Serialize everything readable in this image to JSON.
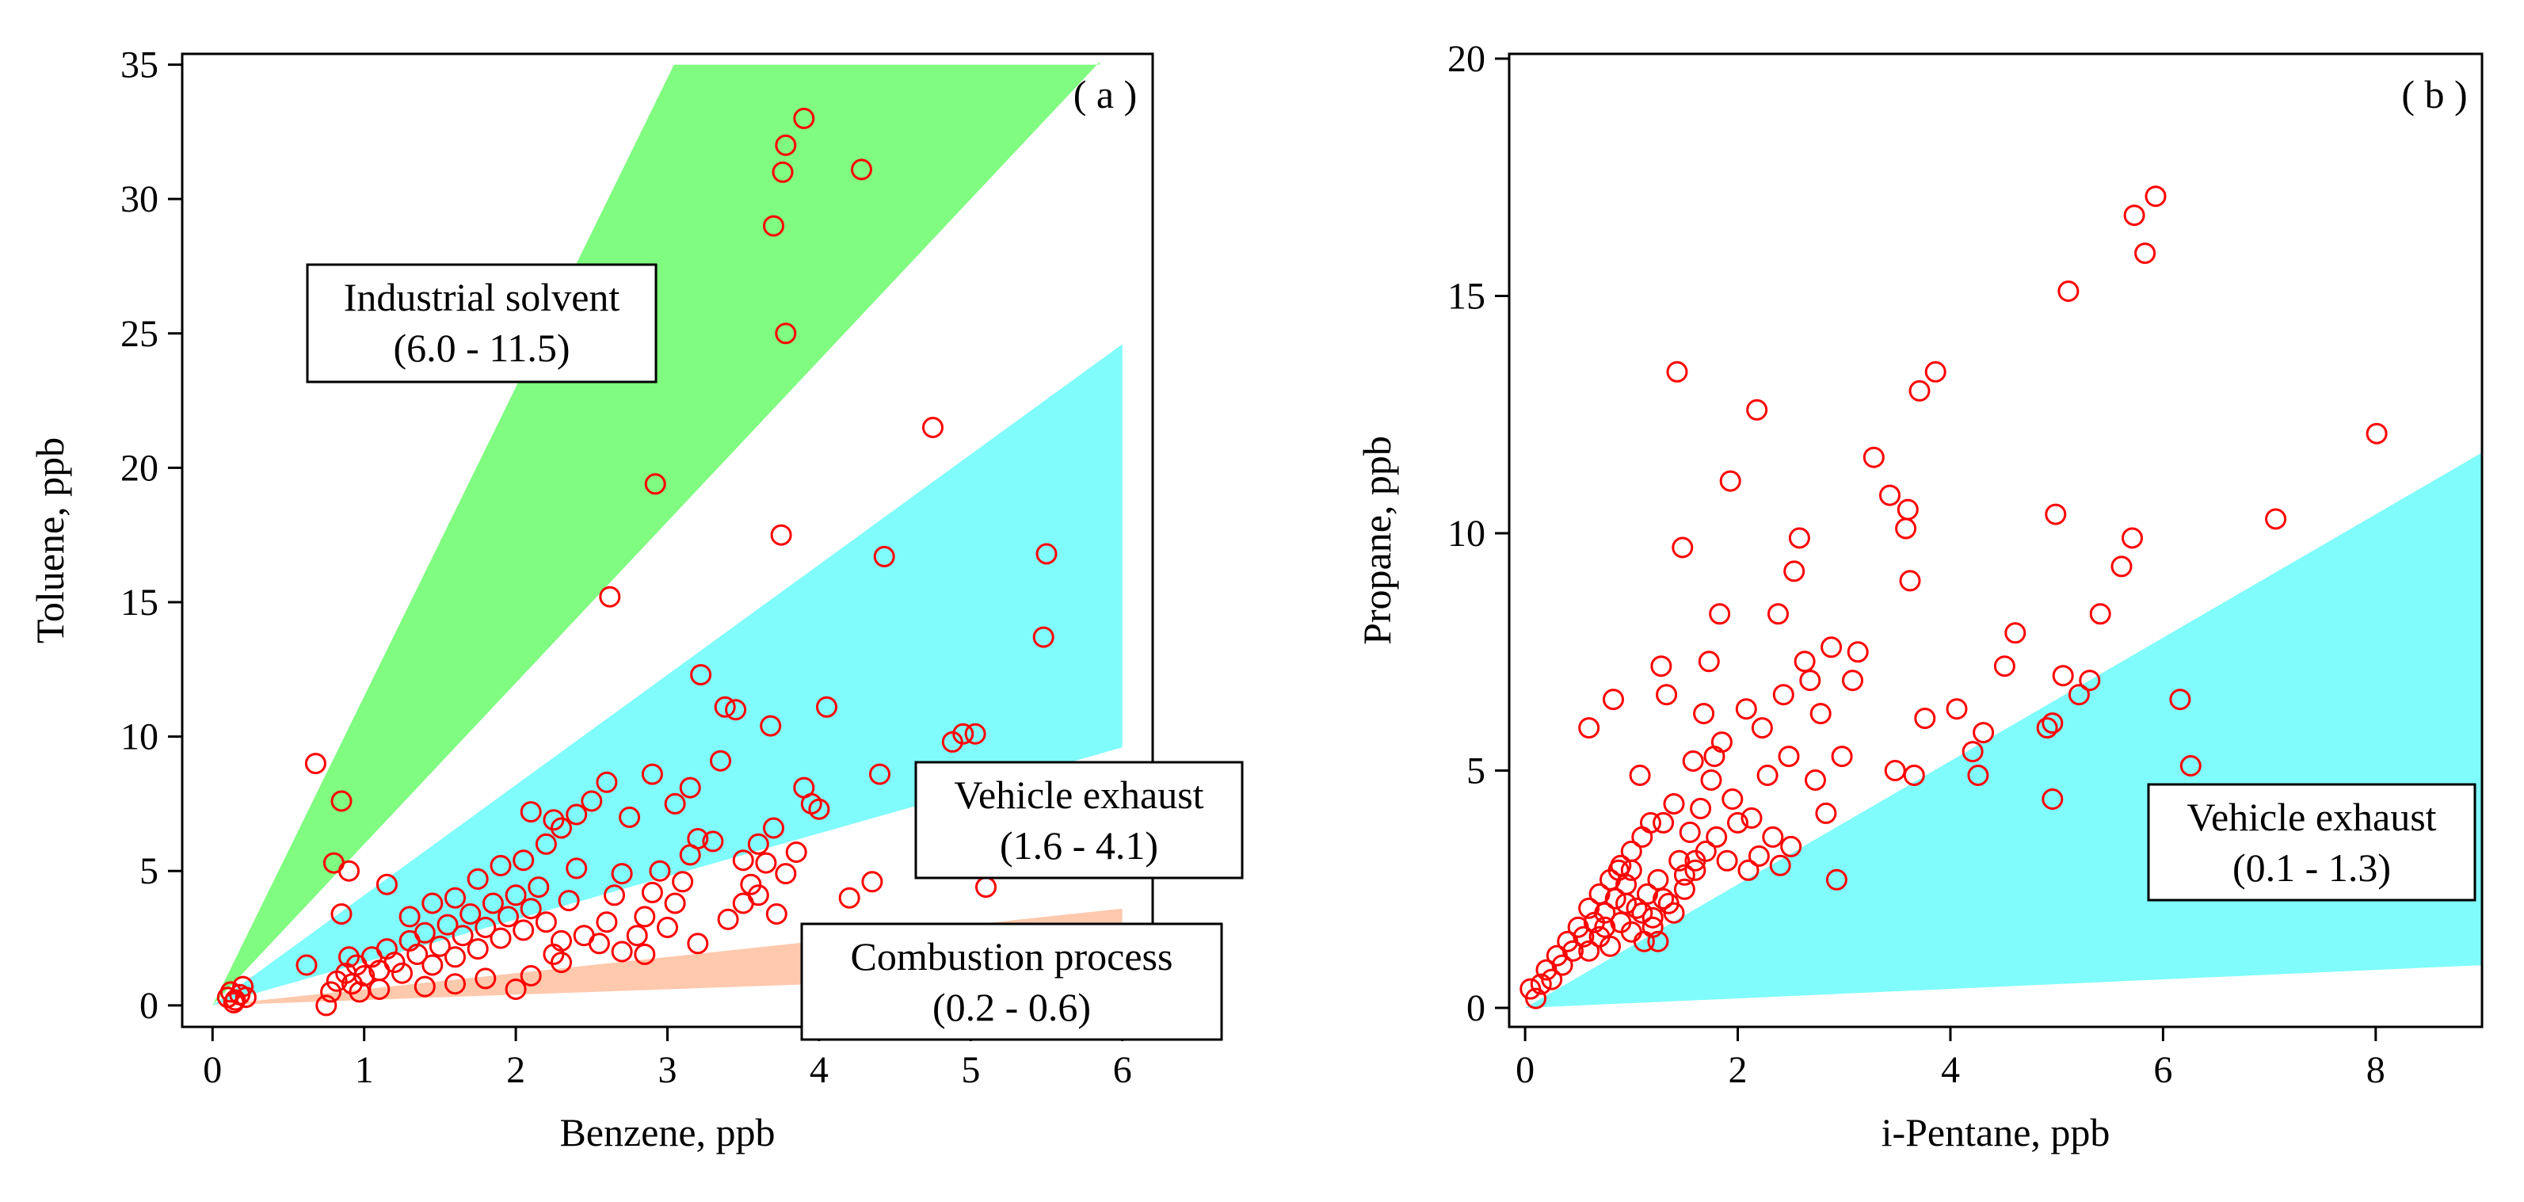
{
  "chart_data": [
    {
      "type": "scatter",
      "panel_label": "( a )",
      "xlabel": "Benzene, ppb",
      "ylabel": "Toluene, ppb",
      "xlim": [
        -0.2,
        6.2
      ],
      "ylim": [
        -0.8,
        35.4
      ],
      "xticks": [
        0,
        1,
        2,
        3,
        4,
        5,
        6
      ],
      "yticks": [
        0,
        5,
        10,
        15,
        20,
        25,
        30,
        35
      ],
      "colors": {
        "marker": "#ff0000",
        "industrial": "#80fc80",
        "vehicle": "#80fcfc",
        "combustion": "#ffc9ad"
      },
      "regions": [
        {
          "name": "industrial",
          "label_line1": "Industrial solvent",
          "label_line2": "(6.0 - 11.5)",
          "ratio_low": 6.0,
          "ratio_high": 11.5,
          "x_end": 5.85,
          "y_cap": 35
        },
        {
          "name": "vehicle",
          "label_line1": "Vehicle exhaust",
          "label_line2": "(1.6 - 4.1)",
          "ratio_low": 1.6,
          "ratio_high": 4.1,
          "x_end": 6.0
        },
        {
          "name": "combustion",
          "label_line1": "Combustion process",
          "label_line2": "(0.2 - 0.6)",
          "ratio_low": 0.2,
          "ratio_high": 0.6,
          "x_end": 6.0
        }
      ],
      "points": [
        [
          0.1,
          0.3
        ],
        [
          0.12,
          0.5
        ],
        [
          0.15,
          0.2
        ],
        [
          0.18,
          0.4
        ],
        [
          0.2,
          0.7
        ],
        [
          0.22,
          0.3
        ],
        [
          0.14,
          0.1
        ],
        [
          0.68,
          9.0
        ],
        [
          0.85,
          7.6
        ],
        [
          0.9,
          5.0
        ],
        [
          0.8,
          5.3
        ],
        [
          0.85,
          3.4
        ],
        [
          1.15,
          4.5
        ],
        [
          0.62,
          1.5
        ],
        [
          0.75,
          0.0
        ],
        [
          0.78,
          0.5
        ],
        [
          0.82,
          0.9
        ],
        [
          0.88,
          1.2
        ],
        [
          0.92,
          0.8
        ],
        [
          0.95,
          1.5
        ],
        [
          1.0,
          1.1
        ],
        [
          1.05,
          1.8
        ],
        [
          1.1,
          1.3
        ],
        [
          1.15,
          2.1
        ],
        [
          0.9,
          1.8
        ],
        [
          1.2,
          1.6
        ],
        [
          1.25,
          1.2
        ],
        [
          1.3,
          2.4
        ],
        [
          1.35,
          1.9
        ],
        [
          1.4,
          2.7
        ],
        [
          1.45,
          1.5
        ],
        [
          1.5,
          2.2
        ],
        [
          1.55,
          3.0
        ],
        [
          1.6,
          1.8
        ],
        [
          1.65,
          2.6
        ],
        [
          1.7,
          3.4
        ],
        [
          1.75,
          2.1
        ],
        [
          1.8,
          2.9
        ],
        [
          1.85,
          3.8
        ],
        [
          1.9,
          2.5
        ],
        [
          1.95,
          3.3
        ],
        [
          2.0,
          4.1
        ],
        [
          2.05,
          2.8
        ],
        [
          2.1,
          3.6
        ],
        [
          2.15,
          4.4
        ],
        [
          2.2,
          3.1
        ],
        [
          2.25,
          1.9
        ],
        [
          2.3,
          2.4
        ],
        [
          2.35,
          3.9
        ],
        [
          2.4,
          5.1
        ],
        [
          2.45,
          2.6
        ],
        [
          1.3,
          3.3
        ],
        [
          1.45,
          3.8
        ],
        [
          1.6,
          4.0
        ],
        [
          1.75,
          4.7
        ],
        [
          1.9,
          5.2
        ],
        [
          2.05,
          5.4
        ],
        [
          2.2,
          6.0
        ],
        [
          2.3,
          6.6
        ],
        [
          2.4,
          7.1
        ],
        [
          2.5,
          7.6
        ],
        [
          2.6,
          8.3
        ],
        [
          2.1,
          7.2
        ],
        [
          2.25,
          6.9
        ],
        [
          2.55,
          2.3
        ],
        [
          2.6,
          3.1
        ],
        [
          2.65,
          4.1
        ],
        [
          2.7,
          4.9
        ],
        [
          2.8,
          2.6
        ],
        [
          2.85,
          3.3
        ],
        [
          2.9,
          4.2
        ],
        [
          2.95,
          5.0
        ],
        [
          3.0,
          2.9
        ],
        [
          3.05,
          3.8
        ],
        [
          3.1,
          4.6
        ],
        [
          3.15,
          5.6
        ],
        [
          3.2,
          6.2
        ],
        [
          2.75,
          7.0
        ],
        [
          2.9,
          8.6
        ],
        [
          3.05,
          7.5
        ],
        [
          3.15,
          8.1
        ],
        [
          3.22,
          12.3
        ],
        [
          3.3,
          6.1
        ],
        [
          3.38,
          11.1
        ],
        [
          3.45,
          11.0
        ],
        [
          3.5,
          5.4
        ],
        [
          3.55,
          4.5
        ],
        [
          3.6,
          6.0
        ],
        [
          3.65,
          5.3
        ],
        [
          3.7,
          6.6
        ],
        [
          3.4,
          3.2
        ],
        [
          3.5,
          3.8
        ],
        [
          3.6,
          4.1
        ],
        [
          3.72,
          3.4
        ],
        [
          3.78,
          4.9
        ],
        [
          3.85,
          5.7
        ],
        [
          3.68,
          10.4
        ],
        [
          3.9,
          8.1
        ],
        [
          3.95,
          7.5
        ],
        [
          4.0,
          7.3
        ],
        [
          4.05,
          11.1
        ],
        [
          4.2,
          4.0
        ],
        [
          2.0,
          0.6
        ],
        [
          2.1,
          1.1
        ],
        [
          1.8,
          1.0
        ],
        [
          1.6,
          0.8
        ],
        [
          1.4,
          0.7
        ],
        [
          2.3,
          1.6
        ],
        [
          2.7,
          2.0
        ],
        [
          2.85,
          1.9
        ],
        [
          3.2,
          2.3
        ],
        [
          1.1,
          0.6
        ],
        [
          0.97,
          0.5
        ],
        [
          3.35,
          9.1
        ],
        [
          4.35,
          4.6
        ],
        [
          4.4,
          8.6
        ],
        [
          4.43,
          16.7
        ],
        [
          4.75,
          21.5
        ],
        [
          4.88,
          9.8
        ],
        [
          4.95,
          10.1
        ],
        [
          5.03,
          10.1
        ],
        [
          5.1,
          4.4
        ],
        [
          5.48,
          13.7
        ],
        [
          5.5,
          16.8
        ],
        [
          2.62,
          15.2
        ],
        [
          2.92,
          19.4
        ],
        [
          3.75,
          17.5
        ],
        [
          3.7,
          29.0
        ],
        [
          3.76,
          31.0
        ],
        [
          3.78,
          32.0
        ],
        [
          3.9,
          33.0
        ],
        [
          4.28,
          31.1
        ],
        [
          3.78,
          25.0
        ]
      ]
    },
    {
      "type": "scatter",
      "panel_label": "( b )",
      "xlabel": "i-Pentane, ppb",
      "ylabel": "Propane, ppb",
      "xlim": [
        -0.15,
        9.0
      ],
      "ylim": [
        -0.4,
        20.1
      ],
      "xticks": [
        0,
        2,
        4,
        6,
        8
      ],
      "yticks": [
        0,
        5,
        10,
        15,
        20
      ],
      "colors": {
        "marker": "#ff0000",
        "vehicle": "#80fcfc"
      },
      "regions": [
        {
          "name": "vehicle",
          "label_line1": "Vehicle exhaust",
          "label_line2": "(0.1 - 1.3)",
          "ratio_low": 0.1,
          "ratio_high": 1.3,
          "x_end": 9.0
        }
      ],
      "points": [
        [
          0.05,
          0.4
        ],
        [
          0.1,
          0.2
        ],
        [
          0.15,
          0.5
        ],
        [
          0.2,
          0.8
        ],
        [
          0.25,
          0.6
        ],
        [
          0.3,
          1.1
        ],
        [
          0.35,
          0.9
        ],
        [
          0.4,
          1.4
        ],
        [
          0.45,
          1.2
        ],
        [
          0.5,
          1.7
        ],
        [
          0.55,
          1.5
        ],
        [
          0.6,
          2.1
        ],
        [
          0.65,
          1.8
        ],
        [
          0.7,
          2.4
        ],
        [
          0.75,
          2.0
        ],
        [
          0.8,
          2.7
        ],
        [
          0.85,
          2.3
        ],
        [
          0.9,
          3.0
        ],
        [
          0.95,
          2.6
        ],
        [
          1.0,
          3.3
        ],
        [
          1.05,
          2.1
        ],
        [
          1.1,
          3.6
        ],
        [
          1.15,
          2.4
        ],
        [
          1.2,
          1.9
        ],
        [
          1.25,
          2.7
        ],
        [
          1.3,
          3.9
        ],
        [
          1.35,
          2.2
        ],
        [
          1.4,
          4.3
        ],
        [
          1.45,
          3.1
        ],
        [
          1.5,
          2.5
        ],
        [
          0.6,
          1.2
        ],
        [
          0.7,
          1.5
        ],
        [
          0.8,
          1.3
        ],
        [
          0.9,
          1.8
        ],
        [
          1.0,
          1.6
        ],
        [
          1.1,
          2.0
        ],
        [
          1.2,
          1.7
        ],
        [
          1.3,
          2.3
        ],
        [
          1.4,
          2.0
        ],
        [
          1.5,
          2.8
        ],
        [
          1.55,
          3.7
        ],
        [
          1.6,
          2.9
        ],
        [
          1.65,
          4.2
        ],
        [
          1.7,
          3.3
        ],
        [
          1.75,
          4.8
        ],
        [
          1.8,
          3.6
        ],
        [
          1.85,
          5.6
        ],
        [
          1.9,
          3.1
        ],
        [
          1.95,
          4.4
        ],
        [
          2.0,
          3.9
        ],
        [
          0.6,
          5.9
        ],
        [
          0.83,
          6.5
        ],
        [
          0.88,
          2.9
        ],
        [
          1.08,
          4.9
        ],
        [
          1.18,
          3.9
        ],
        [
          1.28,
          7.2
        ],
        [
          1.33,
          6.6
        ],
        [
          1.43,
          13.4
        ],
        [
          1.48,
          9.7
        ],
        [
          1.58,
          5.2
        ],
        [
          1.68,
          6.2
        ],
        [
          1.73,
          7.3
        ],
        [
          1.78,
          5.3
        ],
        [
          1.83,
          8.3
        ],
        [
          1.93,
          11.1
        ],
        [
          2.08,
          6.3
        ],
        [
          2.13,
          4.0
        ],
        [
          2.18,
          12.6
        ],
        [
          2.23,
          5.9
        ],
        [
          2.28,
          4.9
        ],
        [
          2.33,
          3.6
        ],
        [
          2.38,
          8.3
        ],
        [
          2.43,
          6.6
        ],
        [
          2.48,
          5.3
        ],
        [
          2.53,
          9.2
        ],
        [
          2.58,
          9.9
        ],
        [
          2.63,
          7.3
        ],
        [
          2.68,
          6.9
        ],
        [
          2.73,
          4.8
        ],
        [
          2.78,
          6.2
        ],
        [
          2.83,
          4.1
        ],
        [
          2.88,
          7.6
        ],
        [
          2.93,
          2.7
        ],
        [
          2.98,
          5.3
        ],
        [
          3.08,
          6.9
        ],
        [
          3.13,
          7.5
        ],
        [
          3.28,
          11.6
        ],
        [
          3.43,
          10.8
        ],
        [
          3.48,
          5.0
        ],
        [
          3.58,
          10.1
        ],
        [
          3.6,
          10.5
        ],
        [
          3.62,
          9.0
        ],
        [
          3.66,
          4.9
        ],
        [
          3.71,
          13.0
        ],
        [
          3.76,
          6.1
        ],
        [
          3.86,
          13.4
        ],
        [
          4.06,
          6.3
        ],
        [
          4.21,
          5.4
        ],
        [
          4.26,
          4.9
        ],
        [
          4.31,
          5.8
        ],
        [
          4.51,
          7.2
        ],
        [
          4.61,
          7.9
        ],
        [
          4.91,
          5.9
        ],
        [
          4.96,
          6.0
        ],
        [
          4.99,
          10.4
        ],
        [
          5.06,
          7.0
        ],
        [
          5.11,
          15.1
        ],
        [
          5.21,
          6.6
        ],
        [
          5.31,
          6.9
        ],
        [
          5.41,
          8.3
        ],
        [
          5.61,
          9.3
        ],
        [
          5.71,
          9.9
        ],
        [
          5.73,
          16.7
        ],
        [
          5.83,
          15.9
        ],
        [
          5.93,
          17.1
        ],
        [
          6.16,
          6.5
        ],
        [
          6.26,
          5.1
        ],
        [
          7.06,
          10.3
        ],
        [
          8.01,
          12.1
        ],
        [
          4.96,
          4.4
        ],
        [
          2.4,
          3.0
        ],
        [
          2.5,
          3.4
        ],
        [
          2.2,
          3.2
        ],
        [
          2.1,
          2.9
        ],
        [
          1.6,
          3.1
        ],
        [
          1.0,
          2.9
        ],
        [
          1.12,
          1.4
        ],
        [
          0.95,
          2.2
        ],
        [
          0.75,
          1.7
        ],
        [
          1.25,
          1.4
        ]
      ]
    }
  ]
}
